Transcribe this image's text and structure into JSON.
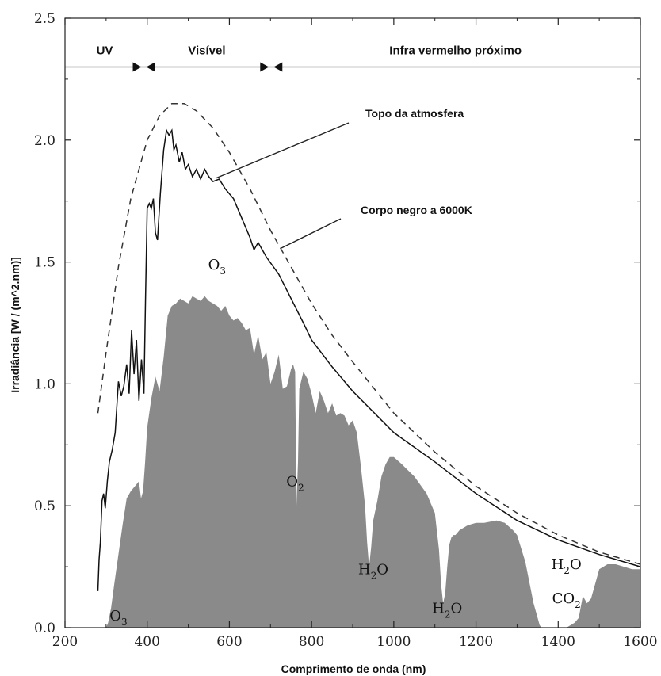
{
  "chart_data": {
    "type": "area",
    "title": "",
    "xlabel": "Comprimento de onda (nm)",
    "ylabel": "Irradiância [W / (m^2.nm)]",
    "xlim": [
      200,
      1600
    ],
    "ylim": [
      0.0,
      2.5
    ],
    "x_ticks": [
      "200",
      "400",
      "600",
      "800",
      "1000",
      "1200",
      "1400",
      "1600"
    ],
    "y_ticks": [
      "0.0",
      "0.5",
      "1.0",
      "1.5",
      "2.0",
      "2.5"
    ],
    "grid": false,
    "bands": [
      {
        "label": "UV",
        "from": 200,
        "to": 390
      },
      {
        "label": "Visível",
        "from": 390,
        "to": 700
      },
      {
        "label": "Infra vermelho próximo",
        "from": 700,
        "to": 1600
      }
    ],
    "annotations": {
      "top_atmosphere": "Topo da atmosfera",
      "blackbody": "Corpo negro a 6000K"
    },
    "absorption_labels": [
      {
        "base": "O",
        "sub": "3",
        "x": 330,
        "y": 0.03
      },
      {
        "base": "O",
        "sub": "3",
        "x": 570,
        "y": 1.47
      },
      {
        "base": "O",
        "sub": "2",
        "x": 760,
        "y": 0.58
      },
      {
        "base": "H",
        "sub": "2",
        "tail": "O",
        "x": 950,
        "y": 0.22
      },
      {
        "base": "H",
        "sub": "2",
        "tail": "O",
        "x": 1130,
        "y": 0.06
      },
      {
        "base": "H",
        "sub": "2",
        "tail": "O",
        "x": 1420,
        "y": 0.24
      },
      {
        "base": "CO",
        "sub": "2",
        "x": 1420,
        "y": 0.1
      }
    ],
    "series": [
      {
        "name": "Corpo negro a 6000K",
        "style": "dashed",
        "color": "#333333",
        "x": [
          280,
          300,
          330,
          360,
          400,
          430,
          460,
          490,
          520,
          560,
          600,
          650,
          700,
          750,
          800,
          850,
          900,
          1000,
          1100,
          1200,
          1300,
          1400,
          1500,
          1600
        ],
        "y": [
          0.88,
          1.13,
          1.48,
          1.76,
          2.0,
          2.1,
          2.15,
          2.15,
          2.12,
          2.05,
          1.95,
          1.8,
          1.63,
          1.48,
          1.33,
          1.2,
          1.09,
          0.88,
          0.72,
          0.58,
          0.47,
          0.38,
          0.31,
          0.26
        ]
      },
      {
        "name": "Topo da atmosfera",
        "style": "solid",
        "color": "#111111",
        "x": [
          280,
          283,
          286,
          290,
          294,
          298,
          303,
          308,
          315,
          322,
          330,
          337,
          343,
          350,
          356,
          362,
          368,
          374,
          380,
          386,
          392,
          396,
          400,
          405,
          410,
          415,
          420,
          425,
          432,
          440,
          447,
          453,
          460,
          465,
          470,
          478,
          485,
          493,
          500,
          510,
          520,
          530,
          540,
          550,
          560,
          575,
          590,
          610,
          630,
          650,
          660,
          670,
          690,
          720,
          750,
          780,
          800,
          850,
          900,
          1000,
          1100,
          1200,
          1300,
          1400,
          1500,
          1600
        ],
        "y": [
          0.15,
          0.28,
          0.35,
          0.52,
          0.55,
          0.49,
          0.6,
          0.68,
          0.73,
          0.8,
          1.01,
          0.95,
          0.99,
          1.08,
          0.96,
          1.22,
          1.04,
          1.18,
          0.93,
          1.1,
          0.96,
          1.35,
          1.72,
          1.74,
          1.72,
          1.76,
          1.62,
          1.59,
          1.78,
          1.96,
          2.04,
          2.02,
          2.04,
          1.96,
          1.98,
          1.91,
          1.95,
          1.88,
          1.9,
          1.85,
          1.88,
          1.84,
          1.88,
          1.85,
          1.83,
          1.84,
          1.8,
          1.76,
          1.68,
          1.6,
          1.55,
          1.58,
          1.52,
          1.45,
          1.35,
          1.25,
          1.18,
          1.07,
          0.97,
          0.8,
          0.68,
          0.55,
          0.44,
          0.36,
          0.3,
          0.25
        ]
      },
      {
        "name": "",
        "style": "fill",
        "color": "#8a8a8a",
        "x": [
          290,
          300,
          305,
          312,
          320,
          330,
          340,
          350,
          360,
          370,
          380,
          385,
          390,
          395,
          400,
          410,
          420,
          430,
          440,
          450,
          460,
          470,
          480,
          490,
          500,
          510,
          520,
          530,
          540,
          550,
          560,
          570,
          580,
          590,
          600,
          610,
          620,
          630,
          640,
          650,
          660,
          670,
          680,
          690,
          700,
          710,
          720,
          730,
          740,
          750,
          755,
          760,
          763,
          767,
          770,
          780,
          790,
          800,
          810,
          820,
          830,
          840,
          850,
          860,
          870,
          880,
          890,
          900,
          910,
          920,
          930,
          935,
          940,
          945,
          950,
          960,
          970,
          980,
          990,
          1000,
          1020,
          1050,
          1080,
          1100,
          1110,
          1115,
          1120,
          1125,
          1130,
          1135,
          1140,
          1145,
          1150,
          1160,
          1180,
          1200,
          1220,
          1250,
          1270,
          1290,
          1300,
          1320,
          1340,
          1350,
          1355,
          1360,
          1400,
          1420,
          1440,
          1450,
          1460,
          1470,
          1480,
          1490,
          1500,
          1520,
          1540,
          1560,
          1580,
          1600
        ],
        "y": [
          0.0,
          0.0,
          0.02,
          0.08,
          0.18,
          0.3,
          0.42,
          0.53,
          0.56,
          0.58,
          0.6,
          0.53,
          0.56,
          0.68,
          0.82,
          0.94,
          1.03,
          0.97,
          1.11,
          1.28,
          1.32,
          1.33,
          1.35,
          1.34,
          1.33,
          1.36,
          1.35,
          1.34,
          1.36,
          1.34,
          1.33,
          1.32,
          1.3,
          1.32,
          1.28,
          1.26,
          1.27,
          1.25,
          1.22,
          1.23,
          1.12,
          1.2,
          1.1,
          1.13,
          1.0,
          1.05,
          1.12,
          0.98,
          0.99,
          1.06,
          1.08,
          1.05,
          0.5,
          0.68,
          0.98,
          1.05,
          1.02,
          0.96,
          0.88,
          0.97,
          0.93,
          0.88,
          0.92,
          0.87,
          0.88,
          0.87,
          0.83,
          0.85,
          0.8,
          0.66,
          0.5,
          0.35,
          0.25,
          0.33,
          0.44,
          0.52,
          0.62,
          0.67,
          0.7,
          0.7,
          0.67,
          0.62,
          0.55,
          0.47,
          0.32,
          0.18,
          0.1,
          0.14,
          0.25,
          0.34,
          0.37,
          0.38,
          0.38,
          0.4,
          0.42,
          0.43,
          0.43,
          0.44,
          0.43,
          0.4,
          0.38,
          0.27,
          0.1,
          0.04,
          0.01,
          0.0,
          0.0,
          0.0,
          0.02,
          0.04,
          0.13,
          0.1,
          0.12,
          0.18,
          0.24,
          0.26,
          0.26,
          0.25,
          0.24,
          0.24
        ]
      }
    ]
  }
}
